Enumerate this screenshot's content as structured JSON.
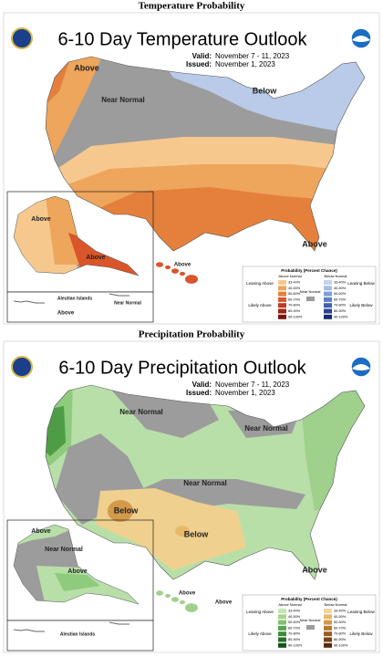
{
  "panels": [
    {
      "heading": "Temperature Probability",
      "title": "6-10 Day Temperature Outlook",
      "valid_label": "Valid:",
      "valid_dates": "November 7 - 11, 2023",
      "issued_label": "Issued:",
      "issued_date": "November 1, 2023",
      "map_labels": [
        "Above",
        "Near Normal",
        "Below",
        "Above",
        "Above",
        "Above",
        "Above",
        "Aleutian Islands",
        "Near Normal",
        "Above"
      ],
      "legend": {
        "title": "Probability (Percent Chance)",
        "above_header": "Above Normal",
        "below_header": "Below Normal",
        "above_ranges": [
          "33-40%",
          "40-50%",
          "50-60%",
          "60-70%",
          "70-80%",
          "80-90%",
          "90-100%"
        ],
        "below_ranges": [
          "33-40%",
          "40-50%",
          "50-60%",
          "60-70%",
          "70-80%",
          "80-90%",
          "90-100%"
        ],
        "leaning_above": "Leaning Above",
        "likely_above": "Likely Above",
        "near_normal": "Near Normal",
        "leaning_below": "Leaning Below",
        "likely_below": "Likely Below"
      }
    },
    {
      "heading": "Precipitation Probability",
      "title": "6-10 Day Precipitation Outlook",
      "valid_label": "Valid:",
      "valid_dates": "November 7 - 11, 2023",
      "issued_label": "Issued:",
      "issued_date": "November 1, 2023",
      "map_labels": [
        "Near Normal",
        "Near Normal",
        "Near Normal",
        "Below",
        "Below",
        "Above",
        "Above",
        "Near Normal",
        "Above",
        "Above",
        "Above",
        "Aleutian Islands"
      ],
      "legend": {
        "title": "Probability (Percent Chance)",
        "above_header": "Above Normal",
        "below_header": "Below Normal",
        "above_ranges": [
          "33-40%",
          "40-50%",
          "50-60%",
          "60-70%",
          "70-80%",
          "80-90%",
          "90-100%"
        ],
        "below_ranges": [
          "33-40%",
          "40-50%",
          "50-60%",
          "60-70%",
          "70-80%",
          "80-90%",
          "90-100%"
        ],
        "leaning_above": "Leaning Above",
        "likely_above": "Likely Above",
        "near_normal": "Near Normal",
        "leaning_below": "Leaning Below",
        "likely_below": "Likely Below"
      }
    }
  ]
}
